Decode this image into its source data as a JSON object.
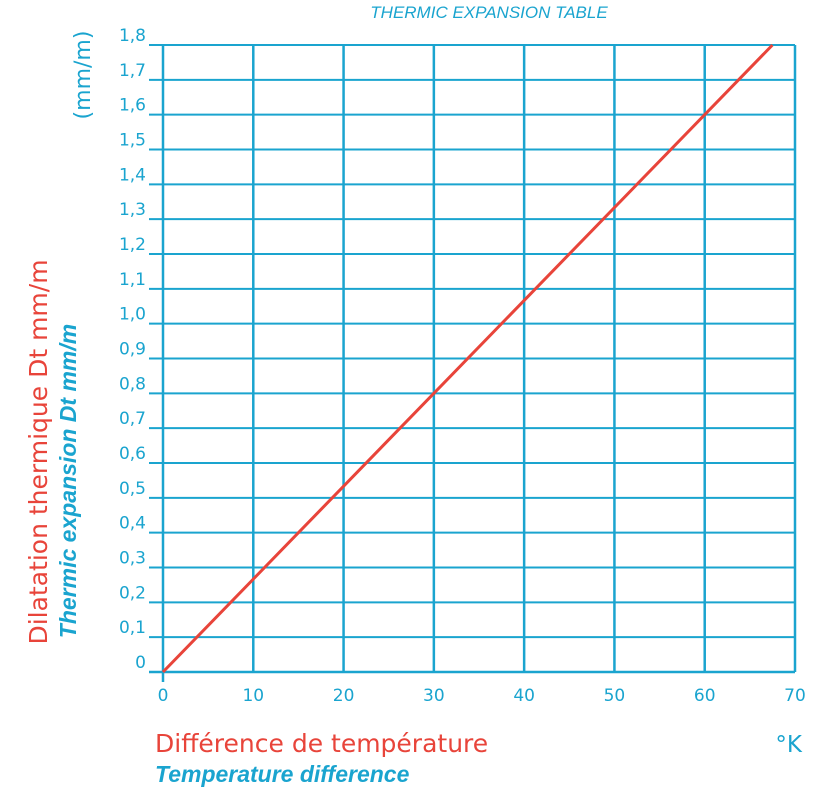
{
  "colors": {
    "accent": "#1aa4cf",
    "line": "#e8443a",
    "axis": "#1aa4cf",
    "background": "#ffffff"
  },
  "chart_data": {
    "type": "line",
    "title": "THERMIC EXPANSION TABLE",
    "y_unit": "(mm/m)",
    "x_unit": "°K",
    "xlabel_fr": "Différence de température",
    "xlabel_en": "Temperature difference",
    "ylabel_fr": "Dilatation thermique Dt mm/m",
    "ylabel_en": "Thermic expansion Dt mm/m",
    "xlim": [
      0,
      70
    ],
    "ylim": [
      0,
      1.8
    ],
    "x_ticks": [
      0,
      10,
      20,
      30,
      40,
      50,
      60,
      70
    ],
    "x_tick_labels": [
      "0",
      "10",
      "20",
      "30",
      "40",
      "50",
      "60",
      "70"
    ],
    "y_ticks": [
      0,
      0.1,
      0.2,
      0.3,
      0.4,
      0.5,
      0.6,
      0.7,
      0.8,
      0.9,
      1.0,
      1.1,
      1.2,
      1.3,
      1.4,
      1.5,
      1.6,
      1.7,
      1.8
    ],
    "y_tick_labels": [
      "0",
      "0,1",
      "0,2",
      "0,3",
      "0,4",
      "0,5",
      "0,6",
      "0,7",
      "0,8",
      "0,9",
      "1,0",
      "1,1",
      "1,2",
      "1,3",
      "1,4",
      "1,5",
      "1,6",
      "1,7",
      "1,8"
    ],
    "grid": true,
    "series": [
      {
        "x": [
          0,
          67.5
        ],
        "y": [
          0,
          1.8
        ]
      }
    ]
  }
}
